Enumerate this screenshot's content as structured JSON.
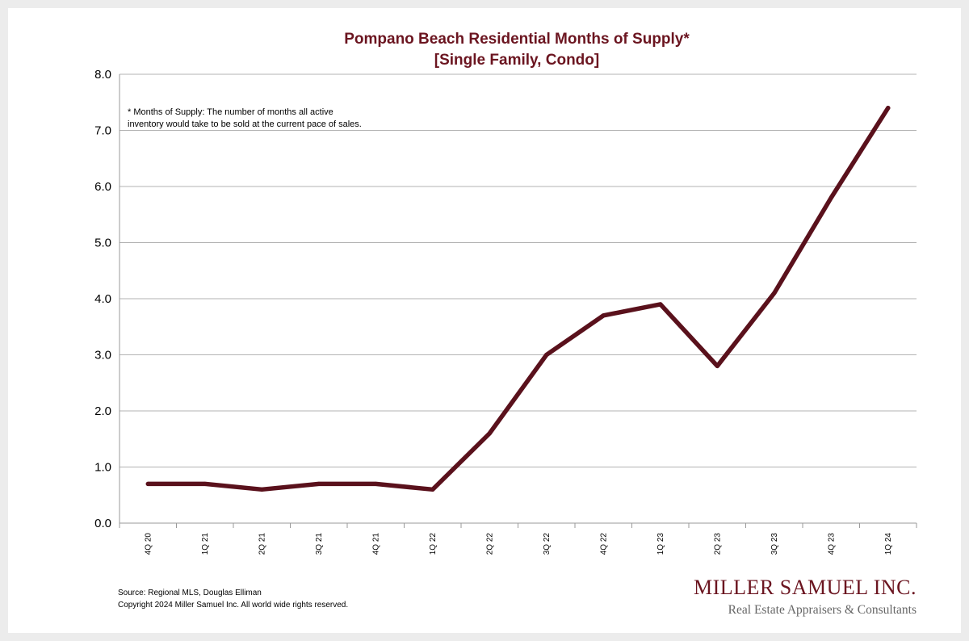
{
  "chart_data": {
    "type": "line",
    "title": "Pompano Beach Residential Months of Supply*",
    "subtitle": "[Single Family, Condo]",
    "xlabel": "",
    "ylabel": "",
    "categories": [
      "4Q 20",
      "1Q 21",
      "2Q 21",
      "3Q 21",
      "4Q 21",
      "1Q 22",
      "2Q 22",
      "3Q 22",
      "4Q 22",
      "1Q 23",
      "2Q 23",
      "3Q 23",
      "4Q 23",
      "1Q 24"
    ],
    "series": [
      {
        "name": "Months of Supply",
        "values": [
          0.7,
          0.7,
          0.6,
          0.7,
          0.7,
          0.6,
          1.6,
          3.0,
          3.7,
          3.9,
          2.8,
          4.1,
          5.8,
          7.4
        ]
      }
    ],
    "ylim": [
      0,
      8
    ],
    "yticks": [
      "0.0",
      "1.0",
      "2.0",
      "3.0",
      "4.0",
      "5.0",
      "6.0",
      "7.0",
      "8.0"
    ],
    "grid": true,
    "line_color": "#5a111c",
    "annotation": {
      "line1": "* Months of Supply: The number of months all active",
      "line2": "inventory would take to be sold at the current pace of sales."
    }
  },
  "footer": {
    "source": "Source: Regional MLS, Douglas Elliman",
    "copyright": "Copyright 2024 Miller Samuel Inc.  All world wide rights reserved."
  },
  "logo": {
    "name": "MILLER SAMUEL INC.",
    "tagline": "Real Estate Appraisers & Consultants"
  },
  "colors": {
    "accent": "#6b1520",
    "grid": "#b3b3b3",
    "background": "#ececec"
  }
}
